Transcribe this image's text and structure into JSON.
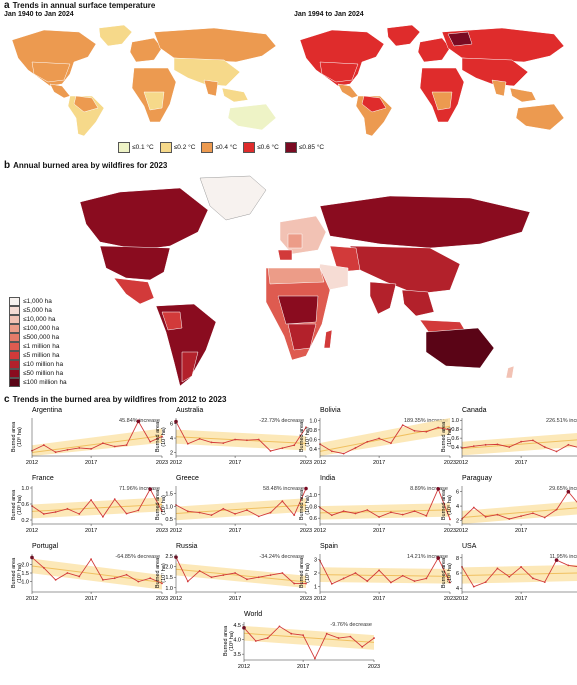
{
  "section_a": {
    "letter": "a",
    "title": "Trends in annual surface temperature",
    "left_map_label": "Jan 1940 to Jan 2024",
    "right_map_label": "Jan 1994 to Jan 2024",
    "legend": [
      {
        "label": "≤0.1 °C",
        "color": "#eef3c6"
      },
      {
        "label": "≤0.2 °C",
        "color": "#f6d98a"
      },
      {
        "label": "≤0.4 °C",
        "color": "#ec9a50"
      },
      {
        "label": "≤0.6 °C",
        "color": "#df2c2c"
      },
      {
        "label": "≤0.85 °C",
        "color": "#7a0a22"
      }
    ]
  },
  "section_b": {
    "letter": "b",
    "title": "Annual burned area by wildfires for 2023",
    "legend": [
      {
        "label": "≤1,000 ha",
        "color": "#f7f2ef"
      },
      {
        "label": "≤5,000 ha",
        "color": "#f6dcd4"
      },
      {
        "label": "≤10,000 ha",
        "color": "#f2c2b4"
      },
      {
        "label": "≤100,000 ha",
        "color": "#ec9c88"
      },
      {
        "label": "≤500,000 ha",
        "color": "#e57b69"
      },
      {
        "label": "≤1 million ha",
        "color": "#de5b50"
      },
      {
        "label": "≤5 million ha",
        "color": "#d23a3a"
      },
      {
        "label": "≤10 million ha",
        "color": "#b3212b"
      },
      {
        "label": "≤50 million ha",
        "color": "#8a0c1f"
      },
      {
        "label": "≤100 million ha",
        "color": "#5a0416"
      }
    ]
  },
  "section_c": {
    "letter": "c",
    "title": "Trends in the burned area by wildfires from 2012 to 2023"
  },
  "chart_data": [
    {
      "type": "line",
      "title": "Argentina",
      "annotation": "45.84% increase",
      "ylabel": "Burned area",
      "yunit": "(10⁶ ha)",
      "x_ticks": [
        "2012",
        "2017",
        "2023"
      ],
      "ylim": [
        0.25,
        1.05
      ],
      "y_ticks": [],
      "x": [
        2012,
        2013,
        2014,
        2015,
        2016,
        2017,
        2018,
        2019,
        2020,
        2021,
        2022,
        2023
      ],
      "values": [
        0.36,
        0.48,
        0.33,
        0.38,
        0.42,
        0.4,
        0.52,
        0.45,
        0.48,
        0.98,
        0.55,
        0.66
      ],
      "highlight": 9
    },
    {
      "type": "line",
      "title": "Australia",
      "annotation": "-22.73% decrease",
      "ylabel": "Burned area",
      "yunit": "(10⁷ ha)",
      "x_ticks": [
        "2012",
        "2017",
        "2023"
      ],
      "ylim": [
        1.5,
        6.8
      ],
      "y_ticks": [
        "2",
        "4",
        "6"
      ],
      "x": [
        2012,
        2013,
        2014,
        2015,
        2016,
        2017,
        2018,
        2019,
        2020,
        2021,
        2022,
        2023
      ],
      "values": [
        6.3,
        3.2,
        3.9,
        3.4,
        3.3,
        3.8,
        3.7,
        3.8,
        2.2,
        2.6,
        3.0,
        5.5
      ],
      "highlight": 0
    },
    {
      "type": "line",
      "title": "Bolivia",
      "annotation": "189.35% increase",
      "ylabel": "Burned area",
      "yunit": "(10⁷ ha)",
      "x_ticks": [
        "2012",
        "2017",
        "2023"
      ],
      "ylim": [
        0.25,
        1.05
      ],
      "y_ticks": [
        "0.4",
        "0.6",
        "0.8",
        "1.0"
      ],
      "x": [
        2012,
        2013,
        2014,
        2015,
        2016,
        2017,
        2018,
        2019,
        2020,
        2021,
        2022,
        2023
      ],
      "values": [
        0.5,
        0.35,
        0.3,
        0.42,
        0.55,
        0.62,
        0.52,
        0.9,
        0.78,
        0.76,
        0.85,
        0.8
      ],
      "highlight": -1
    },
    {
      "type": "line",
      "title": "Canada",
      "annotation": "226.51% increase",
      "ylabel": "Burned area",
      "yunit": "(10⁷ ha)",
      "x_ticks": [
        "2012",
        "2017",
        "2023"
      ],
      "ylim": [
        0.2,
        1.05
      ],
      "y_ticks": [
        "0.4",
        "0.6",
        "0.8",
        "1.0"
      ],
      "x": [
        2012,
        2013,
        2014,
        2015,
        2016,
        2017,
        2018,
        2019,
        2020,
        2021,
        2022,
        2023
      ],
      "values": [
        0.38,
        0.42,
        0.45,
        0.46,
        0.4,
        0.52,
        0.55,
        0.4,
        0.3,
        0.45,
        0.38,
        1.0
      ],
      "highlight": 11
    },
    {
      "type": "line",
      "title": "France",
      "annotation": "71.96% increase",
      "ylabel": "Burned area",
      "yunit": "(10⁵ ha)",
      "x_ticks": [
        "2012",
        "2017",
        "2023"
      ],
      "ylim": [
        0.1,
        1.05
      ],
      "y_ticks": [
        "0.2",
        "0.6",
        "1.0"
      ],
      "x": [
        2012,
        2013,
        2014,
        2015,
        2016,
        2017,
        2018,
        2019,
        2020,
        2021,
        2022,
        2023
      ],
      "values": [
        0.55,
        0.35,
        0.4,
        0.48,
        0.35,
        0.7,
        0.28,
        0.72,
        0.36,
        0.44,
        0.97,
        0.42
      ],
      "highlight": 10
    },
    {
      "type": "line",
      "title": "Greece",
      "annotation": "58.48% increase",
      "ylabel": "Burned area",
      "yunit": "(10⁵ ha)",
      "x_ticks": [
        "2012",
        "2017",
        "2023"
      ],
      "ylim": [
        0.3,
        1.8
      ],
      "y_ticks": [
        "0.5",
        "1.0",
        "1.5"
      ],
      "x": [
        2012,
        2013,
        2014,
        2015,
        2016,
        2017,
        2018,
        2019,
        2020,
        2021,
        2022,
        2023
      ],
      "values": [
        1.05,
        0.8,
        0.75,
        0.65,
        0.9,
        0.7,
        0.85,
        0.6,
        0.75,
        1.2,
        0.65,
        1.7
      ],
      "highlight": 11
    },
    {
      "type": "line",
      "title": "India",
      "annotation": "8.89% increase",
      "ylabel": "Burned area",
      "yunit": "(10⁷ ha)",
      "x_ticks": [
        "2012",
        "2017",
        "2023"
      ],
      "ylim": [
        0.5,
        1.15
      ],
      "y_ticks": [
        "0.6",
        "0.8",
        "1.0"
      ],
      "x": [
        2012,
        2013,
        2014,
        2015,
        2016,
        2017,
        2018,
        2019,
        2020,
        2021,
        2022,
        2023
      ],
      "values": [
        0.78,
        0.65,
        0.72,
        0.68,
        0.74,
        0.62,
        0.7,
        0.66,
        0.72,
        0.64,
        1.1,
        0.58
      ],
      "highlight": 10
    },
    {
      "type": "line",
      "title": "Paraguay",
      "annotation": "29.65% increase",
      "ylabel": "Burned area",
      "yunit": "(10⁶ ha)",
      "x_ticks": [
        "2012",
        "2017",
        "2023"
      ],
      "ylim": [
        1.5,
        6.8
      ],
      "y_ticks": [
        "2",
        "4",
        "6"
      ],
      "x": [
        2012,
        2013,
        2014,
        2015,
        2016,
        2017,
        2018,
        2019,
        2020,
        2021,
        2022,
        2023
      ],
      "values": [
        2.2,
        3.8,
        2.5,
        2.8,
        2.2,
        2.6,
        3.0,
        2.4,
        3.5,
        6.0,
        4.0,
        3.0
      ],
      "highlight": 9
    },
    {
      "type": "line",
      "title": "Portugal",
      "annotation": "-64.85% decrease",
      "ylabel": "Burned area",
      "yunit": "(10⁵ ha)",
      "x_ticks": [
        "2012",
        "2017",
        "2023"
      ],
      "ylim": [
        0.4,
        2.6
      ],
      "y_ticks": [
        "1.0",
        "1.5",
        "2.0"
      ],
      "x": [
        2012,
        2013,
        2014,
        2015,
        2016,
        2017,
        2018,
        2019,
        2020,
        2021,
        2022,
        2023
      ],
      "values": [
        2.4,
        1.8,
        1.1,
        1.5,
        1.3,
        2.3,
        1.1,
        1.2,
        1.4,
        1.0,
        1.2,
        0.9
      ],
      "highlight": 0
    },
    {
      "type": "line",
      "title": "Russia",
      "annotation": "-34.24% decrease",
      "ylabel": "Burned area",
      "yunit": "(10⁷ ha)",
      "x_ticks": [
        "2012",
        "2017",
        "2023"
      ],
      "ylim": [
        0.8,
        2.6
      ],
      "y_ticks": [
        "1.0",
        "1.5",
        "2.0",
        "2.5"
      ],
      "x": [
        2012,
        2013,
        2014,
        2015,
        2016,
        2017,
        2018,
        2019,
        2020,
        2021,
        2022,
        2023
      ],
      "values": [
        2.45,
        1.3,
        1.8,
        1.5,
        1.6,
        1.7,
        1.4,
        1.5,
        1.6,
        1.7,
        1.2,
        1.2
      ],
      "highlight": 0
    },
    {
      "type": "line",
      "title": "Spain",
      "annotation": "14.21% increase",
      "ylabel": "Burned area",
      "yunit": "(10⁵ ha)",
      "x_ticks": [
        "2012",
        "2017",
        "2023"
      ],
      "ylim": [
        0.6,
        3.4
      ],
      "y_ticks": [
        "1",
        "2",
        "3"
      ],
      "x": [
        2012,
        2013,
        2014,
        2015,
        2016,
        2017,
        2018,
        2019,
        2020,
        2021,
        2022,
        2023
      ],
      "values": [
        2.9,
        1.2,
        1.6,
        2.0,
        1.4,
        2.2,
        1.3,
        1.8,
        1.4,
        1.6,
        3.1,
        1.3
      ],
      "highlight": 10
    },
    {
      "type": "line",
      "title": "USA",
      "annotation": "11.95% increase",
      "ylabel": "Burned area",
      "yunit": "(10⁶ ha)",
      "x_ticks": [
        "2012",
        "2017",
        "2023"
      ],
      "ylim": [
        3.5,
        8.5
      ],
      "y_ticks": [
        "4",
        "6",
        "8"
      ],
      "x": [
        2012,
        2013,
        2014,
        2015,
        2016,
        2017,
        2018,
        2019,
        2020,
        2021,
        2022,
        2023
      ],
      "values": [
        6.8,
        4.2,
        4.8,
        6.6,
        5.5,
        6.8,
        5.3,
        4.8,
        7.7,
        7.0,
        6.8,
        4.0
      ],
      "highlight": 8
    },
    {
      "type": "line",
      "title": "World",
      "annotation": "-9.76% decrease",
      "ylabel": "Burned area",
      "yunit": "(10⁸ ha)",
      "x_ticks": [
        "2012",
        "2017",
        "2023"
      ],
      "ylim": [
        3.3,
        4.6
      ],
      "y_ticks": [
        "3.5",
        "4.0",
        "4.5"
      ],
      "x": [
        2012,
        2013,
        2014,
        2015,
        2016,
        2017,
        2018,
        2019,
        2020,
        2021,
        2022,
        2023
      ],
      "values": [
        4.4,
        3.95,
        4.05,
        4.45,
        4.2,
        4.15,
        3.35,
        4.2,
        4.05,
        4.1,
        3.75,
        4.05
      ],
      "highlight": 0
    }
  ]
}
